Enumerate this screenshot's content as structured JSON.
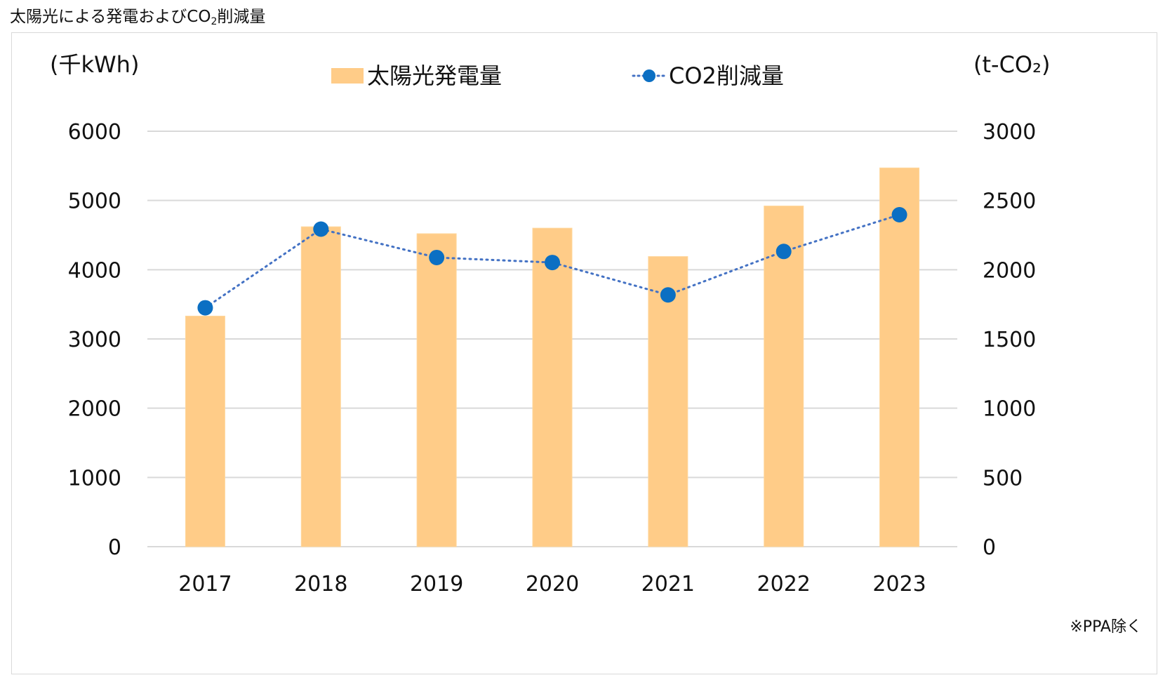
{
  "page_title": {
    "prefix": "太陽光による発電およびCO",
    "sub": "2",
    "suffix": "削減量"
  },
  "footnote": "※PPA除く",
  "colors": {
    "bar": "#ffcc88",
    "bar_edge": "#ffd79c",
    "line": "#4472c4",
    "marker": "#0b6fc3",
    "grid": "#d9d9d9"
  },
  "chart_data": {
    "type": "bar+line",
    "title": "太陽光による発電およびCO2削減量",
    "categories": [
      "2017",
      "2018",
      "2019",
      "2020",
      "2021",
      "2022",
      "2023"
    ],
    "series": [
      {
        "name": "太陽光発電量",
        "type": "bar",
        "axis": "left",
        "values": [
          3330,
          4620,
          4520,
          4600,
          4190,
          4920,
          5470
        ]
      },
      {
        "name": "CO2削減量",
        "type": "line",
        "axis": "right",
        "line_style": "dotted",
        "values": [
          1725,
          2293,
          2088,
          2052,
          1818,
          2132,
          2397
        ]
      }
    ],
    "y_left": {
      "label": "(千kWh)",
      "min": 0,
      "max": 6000,
      "ticks": [
        "0",
        "1000",
        "2000",
        "3000",
        "4000",
        "5000",
        "6000"
      ]
    },
    "y_right": {
      "label": "(t-CO₂)",
      "min": 0,
      "max": 3000,
      "ticks": [
        "0",
        "500",
        "1000",
        "1500",
        "2000",
        "2500",
        "3000"
      ]
    },
    "legend": {
      "position": "top-center"
    },
    "grid": true
  }
}
